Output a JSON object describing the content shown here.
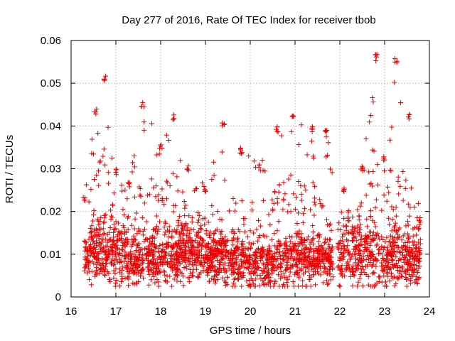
{
  "colors": {
    "series": "#ee0000",
    "grid": "#a0a0a0",
    "axis": "#000000"
  },
  "chart_data": {
    "type": "scatter",
    "marker": "plus",
    "title": "Day 277 of 2016, Rate Of TEC Index for receiver tbob",
    "xlabel": "GPS time / hours",
    "ylabel": "ROTI / TECUs",
    "xlim": [
      16,
      24
    ],
    "ylim": [
      0,
      0.06
    ],
    "xticks": [
      16,
      17,
      18,
      19,
      20,
      21,
      22,
      23,
      24
    ],
    "xtick_labels": [
      "16",
      "17",
      "18",
      "19",
      "20",
      "21",
      "22",
      "23",
      "24"
    ],
    "yticks": [
      0,
      0.01,
      0.02,
      0.03,
      0.04,
      0.05,
      0.06
    ],
    "ytick_labels": [
      "0",
      "0.01",
      "0.02",
      "0.03",
      "0.04",
      "0.05",
      "0.06"
    ],
    "grid": true,
    "series": [
      {
        "name": "ROTI",
        "envelope": [
          {
            "x": 16.3,
            "median": 0.009,
            "spread": 0.004,
            "max": 0.024
          },
          {
            "x": 16.55,
            "median": 0.011,
            "spread": 0.005,
            "max": 0.044
          },
          {
            "x": 16.75,
            "median": 0.012,
            "spread": 0.006,
            "max": 0.052
          },
          {
            "x": 17.0,
            "median": 0.01,
            "spread": 0.005,
            "max": 0.03
          },
          {
            "x": 17.3,
            "median": 0.009,
            "spread": 0.004,
            "max": 0.027
          },
          {
            "x": 17.6,
            "median": 0.009,
            "spread": 0.004,
            "max": 0.046
          },
          {
            "x": 18.0,
            "median": 0.009,
            "spread": 0.005,
            "max": 0.036
          },
          {
            "x": 18.3,
            "median": 0.01,
            "spread": 0.005,
            "max": 0.043
          },
          {
            "x": 18.6,
            "median": 0.011,
            "spread": 0.005,
            "max": 0.031
          },
          {
            "x": 19.0,
            "median": 0.009,
            "spread": 0.004,
            "max": 0.026
          },
          {
            "x": 19.4,
            "median": 0.01,
            "spread": 0.005,
            "max": 0.041
          },
          {
            "x": 19.8,
            "median": 0.008,
            "spread": 0.004,
            "max": 0.035
          },
          {
            "x": 20.2,
            "median": 0.008,
            "spread": 0.004,
            "max": 0.031
          },
          {
            "x": 20.6,
            "median": 0.008,
            "spread": 0.004,
            "max": 0.04
          },
          {
            "x": 20.95,
            "median": 0.009,
            "spread": 0.004,
            "max": 0.043
          },
          {
            "x": 21.4,
            "median": 0.009,
            "spread": 0.004,
            "max": 0.04
          },
          {
            "x": 21.7,
            "median": 0.009,
            "spread": 0.004,
            "max": 0.039
          },
          {
            "x": 22.1,
            "median": 0.01,
            "spread": 0.005,
            "max": 0.026
          },
          {
            "x": 22.5,
            "median": 0.01,
            "spread": 0.005,
            "max": 0.031
          },
          {
            "x": 22.8,
            "median": 0.011,
            "spread": 0.006,
            "max": 0.057
          },
          {
            "x": 23.0,
            "median": 0.008,
            "spread": 0.004,
            "max": 0.033
          },
          {
            "x": 23.25,
            "median": 0.01,
            "spread": 0.005,
            "max": 0.056
          },
          {
            "x": 23.55,
            "median": 0.009,
            "spread": 0.005,
            "max": 0.043
          },
          {
            "x": 23.8,
            "median": 0.009,
            "spread": 0.004,
            "max": 0.018
          }
        ],
        "gaps": [
          [
            21.85,
            21.95
          ],
          [
            22.9,
            22.93
          ]
        ]
      }
    ]
  }
}
